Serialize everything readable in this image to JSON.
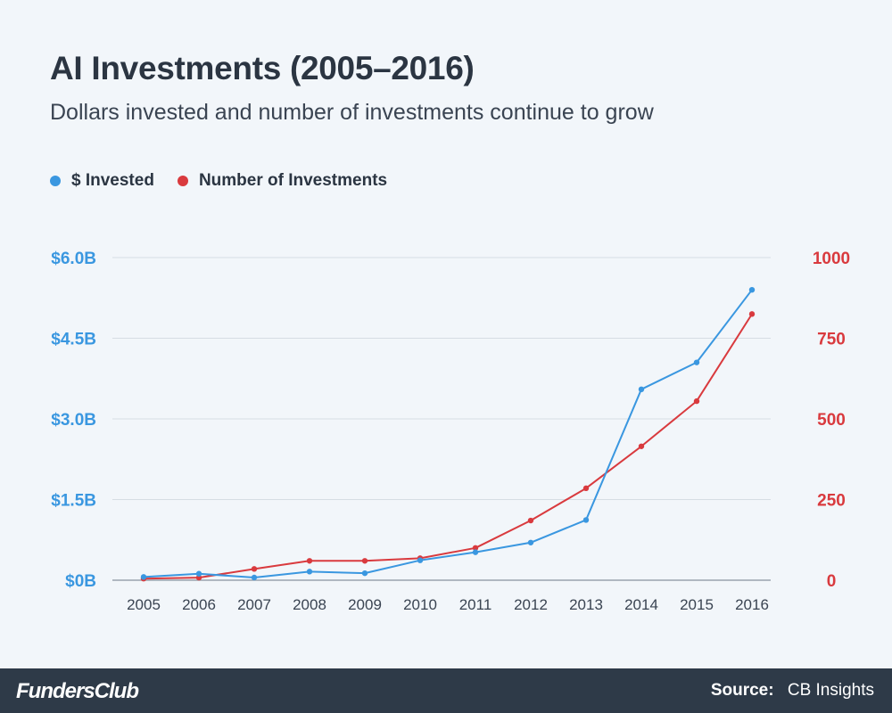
{
  "header": {
    "title": "AI Investments (2005–2016)",
    "subtitle": "Dollars invested and number of investments continue to grow"
  },
  "legend": [
    {
      "label": "$ Invested",
      "color": "#3a97e0"
    },
    {
      "label": "Number of Investments",
      "color": "#d93a3e"
    }
  ],
  "footer": {
    "brand": "FundersClub",
    "source_label": "Source:",
    "source_value": "CB Insights"
  },
  "chart_data": {
    "type": "line",
    "x": [
      "2005",
      "2006",
      "2007",
      "2008",
      "2009",
      "2010",
      "2011",
      "2012",
      "2013",
      "2014",
      "2015",
      "2016"
    ],
    "y_left": {
      "ticks": [
        "$0B",
        "$1.5B",
        "$3.0B",
        "$4.5B",
        "$6.0B"
      ],
      "tick_values": [
        0,
        1.5,
        3.0,
        4.5,
        6.0
      ],
      "ylim": [
        0,
        6.0
      ],
      "color": "#3a97e0"
    },
    "y_right": {
      "ticks": [
        "0",
        "250",
        "500",
        "750",
        "1000"
      ],
      "tick_values": [
        0,
        250,
        500,
        750,
        1000
      ],
      "ylim": [
        0,
        1000
      ],
      "color": "#d93a3e"
    },
    "series": [
      {
        "name": "$ Invested",
        "axis": "left",
        "color": "#3a97e0",
        "values": [
          0.06,
          0.12,
          0.05,
          0.16,
          0.13,
          0.37,
          0.52,
          0.7,
          1.12,
          3.55,
          4.05,
          5.4
        ]
      },
      {
        "name": "Number of Investments",
        "axis": "right",
        "color": "#d93a3e",
        "values": [
          5,
          8,
          35,
          60,
          60,
          68,
          100,
          185,
          285,
          415,
          555,
          825
        ]
      }
    ],
    "grid": true,
    "legend_position": "top-left"
  }
}
